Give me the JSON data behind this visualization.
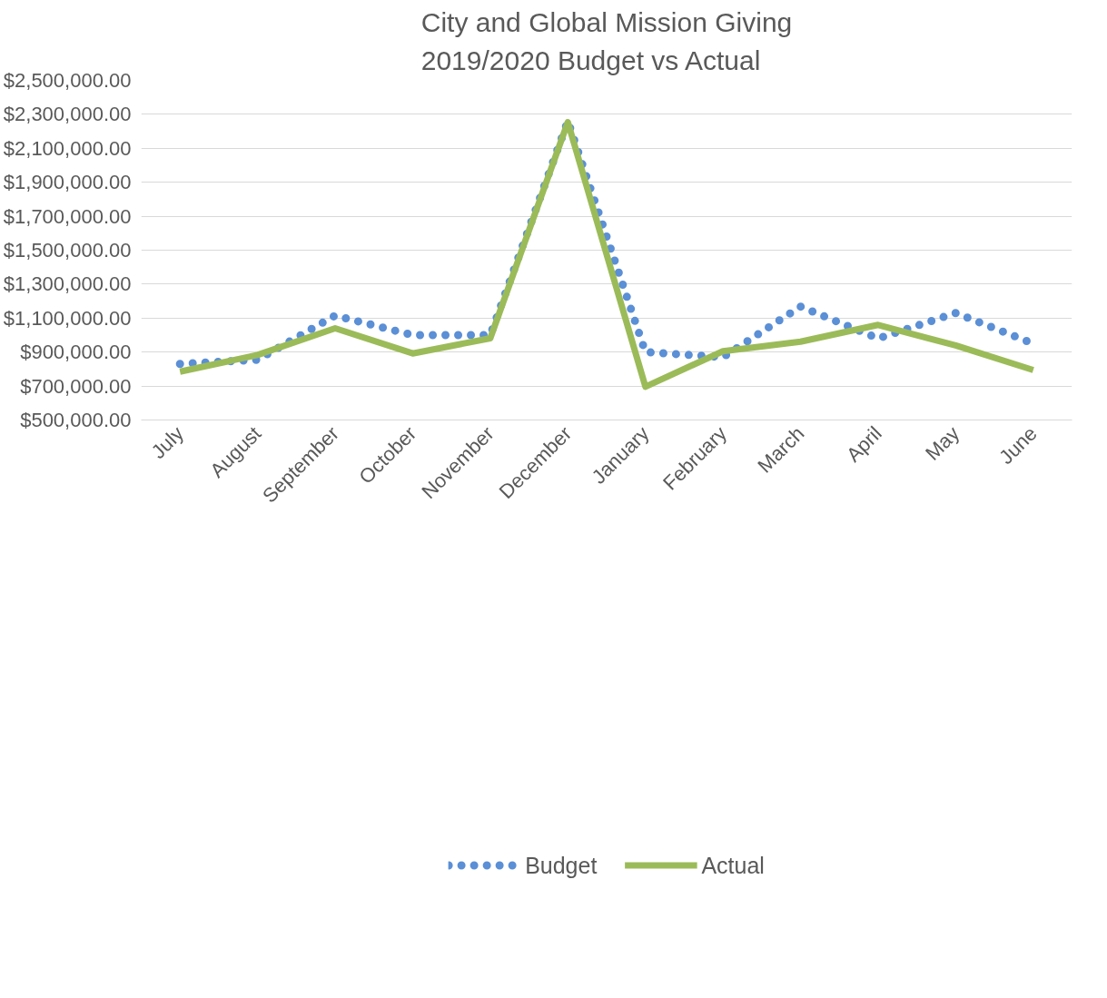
{
  "chart_data": {
    "type": "line",
    "title": "City and Global Mission Giving\n2019/2020 Budget vs Actual",
    "categories": [
      "July",
      "August",
      "September",
      "October",
      "November",
      "December",
      "January",
      "February",
      "March",
      "April",
      "May",
      "June"
    ],
    "series": [
      {
        "name": "Budget",
        "color": "#5b8fd6",
        "line_style": "dotted",
        "values": [
          830000,
          855000,
          1115000,
          1000000,
          1000000,
          2260000,
          900000,
          870000,
          1168000,
          980000,
          1130000,
          950000
        ]
      },
      {
        "name": "Actual",
        "color": "#9bbb59",
        "line_style": "solid",
        "values": [
          785000,
          883000,
          1040000,
          892000,
          981000,
          2254000,
          696000,
          905000,
          961000,
          1060000,
          939000,
          794000
        ]
      }
    ],
    "ylim": [
      500000,
      2500000
    ],
    "yticks": [
      {
        "value": 500000,
        "label": "$500,000.00"
      },
      {
        "value": 700000,
        "label": "$700,000.00"
      },
      {
        "value": 900000,
        "label": "$900,000.00"
      },
      {
        "value": 1100000,
        "label": "$1,100,000.00"
      },
      {
        "value": 1300000,
        "label": "$1,300,000.00"
      },
      {
        "value": 1500000,
        "label": "$1,500,000.00"
      },
      {
        "value": 1700000,
        "label": "$1,700,000.00"
      },
      {
        "value": 1900000,
        "label": "$1,900,000.00"
      },
      {
        "value": 2100000,
        "label": "$2,100,000.00"
      },
      {
        "value": 2300000,
        "label": "$2,300,000.00"
      },
      {
        "value": 2500000,
        "label": "$2,500,000.00"
      }
    ],
    "grid": "y",
    "legend": "bottom",
    "marker": "none"
  }
}
